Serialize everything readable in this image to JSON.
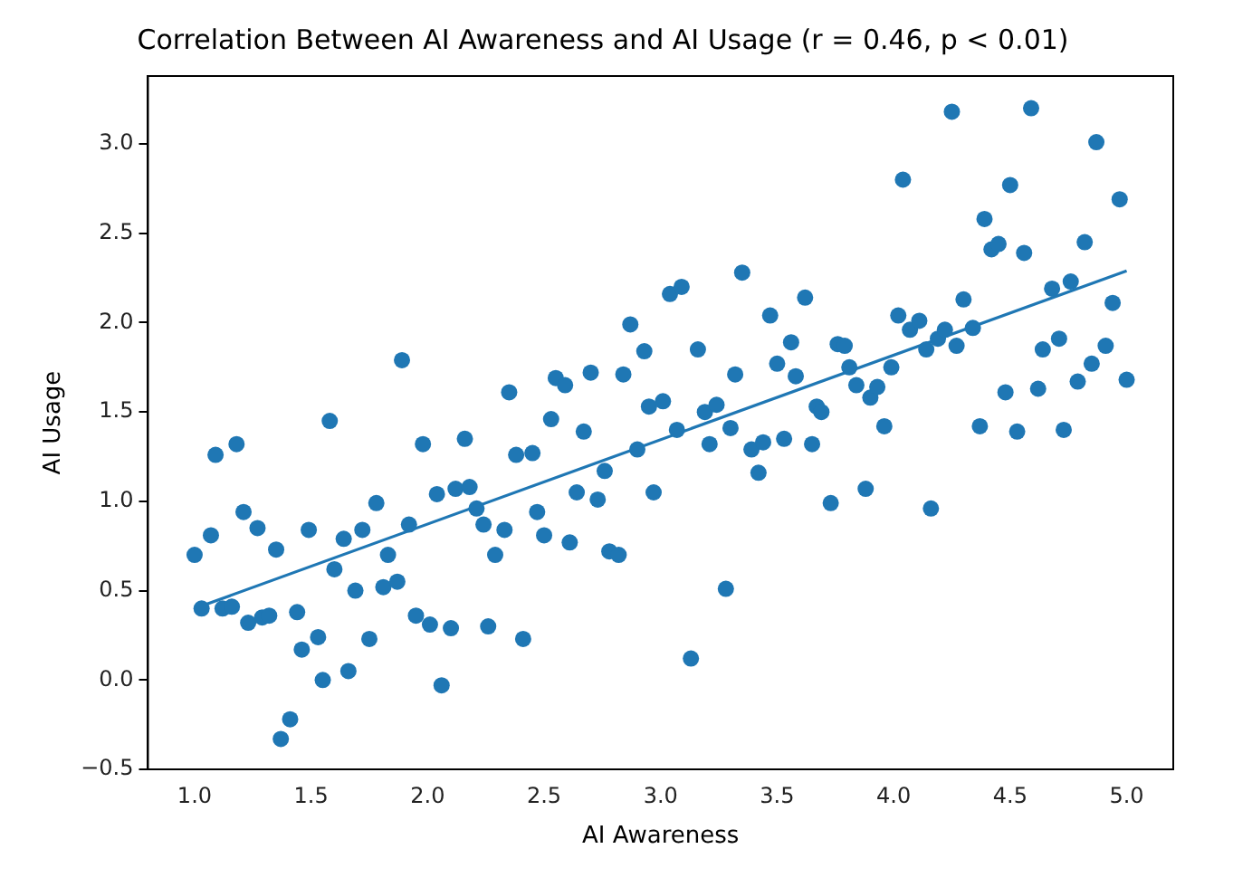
{
  "chart_data": {
    "type": "scatter",
    "title": "Correlation Between AI Awareness and AI Usage (r = 0.46, p < 0.01)",
    "xlabel": "AI Awareness",
    "ylabel": "AI Usage",
    "grid": false,
    "legend": false,
    "marker": "circle",
    "xlim": [
      0.8,
      5.2
    ],
    "ylim": [
      -0.5,
      3.38
    ],
    "xticks": [
      {
        "value": 1,
        "label": "1.0"
      },
      {
        "value": 1.5,
        "label": "1.5"
      },
      {
        "value": 2,
        "label": "2.0"
      },
      {
        "value": 2.5,
        "label": "2.5"
      },
      {
        "value": 3,
        "label": "3.0"
      },
      {
        "value": 3.5,
        "label": "3.5"
      },
      {
        "value": 4,
        "label": "4.0"
      },
      {
        "value": 4.5,
        "label": "4.5"
      },
      {
        "value": 5,
        "label": "5.0"
      }
    ],
    "yticks": [
      {
        "value": -0.5,
        "label": "−0.5"
      },
      {
        "value": 0,
        "label": "0.0"
      },
      {
        "value": 0.5,
        "label": "0.5"
      },
      {
        "value": 1,
        "label": "1.0"
      },
      {
        "value": 1.5,
        "label": "1.5"
      },
      {
        "value": 2,
        "label": "2.0"
      },
      {
        "value": 2.5,
        "label": "2.5"
      },
      {
        "value": 3,
        "label": "3.0"
      }
    ],
    "series": [
      {
        "color": "#1f77b4",
        "x": [
          1.0,
          1.07,
          1.09,
          1.18,
          1.03,
          1.12,
          1.16,
          1.21,
          1.27,
          1.23,
          1.29,
          1.32,
          1.35,
          1.44,
          1.41,
          1.37,
          1.46,
          1.53,
          1.55,
          1.49,
          1.58,
          1.6,
          1.64,
          1.72,
          1.69,
          1.66,
          1.75,
          1.78,
          1.83,
          1.81,
          1.87,
          1.92,
          1.95,
          2.01,
          2.1,
          2.06,
          1.98,
          2.04,
          2.12,
          2.18,
          2.16,
          2.21,
          2.24,
          2.29,
          2.33,
          2.26,
          2.41,
          2.38,
          2.45,
          2.47,
          2.5,
          2.53,
          2.61,
          2.64,
          2.67,
          2.73,
          2.76,
          2.78,
          2.82,
          2.9,
          2.97,
          2.95,
          1.89,
          2.35,
          2.55,
          2.59,
          2.7,
          2.84,
          2.87,
          2.93,
          3.04,
          3.09,
          3.16,
          3.01,
          3.07,
          3.19,
          3.24,
          3.3,
          3.32,
          3.35,
          3.47,
          3.56,
          3.5,
          3.58,
          3.62,
          3.76,
          3.79,
          3.81,
          3.67,
          3.69,
          3.84,
          3.9,
          3.93,
          3.99,
          3.96,
          4.02,
          4.04,
          4.07,
          4.11,
          4.14,
          4.19,
          4.22,
          4.25,
          4.27,
          4.3,
          4.34,
          4.39,
          4.42,
          4.45,
          4.48,
          4.5,
          4.56,
          4.59,
          4.62,
          4.64,
          4.68,
          4.71,
          4.76,
          4.79,
          4.82,
          4.85,
          4.87,
          4.91,
          4.94,
          4.97,
          5.0,
          4.37,
          4.53,
          4.73,
          3.21,
          3.39,
          3.44,
          3.53,
          3.42,
          3.65,
          3.73,
          3.88,
          4.16,
          3.28,
          3.13
        ],
        "values": [
          0.7,
          0.81,
          1.26,
          1.32,
          0.4,
          0.4,
          0.41,
          0.94,
          0.85,
          0.32,
          0.35,
          0.36,
          0.73,
          0.38,
          -0.22,
          -0.33,
          0.17,
          0.24,
          0.0,
          0.84,
          1.45,
          0.62,
          0.79,
          0.84,
          0.5,
          0.05,
          0.23,
          0.99,
          0.7,
          0.52,
          0.55,
          0.87,
          0.36,
          0.31,
          0.29,
          -0.03,
          1.32,
          1.04,
          1.07,
          1.08,
          1.35,
          0.96,
          0.87,
          0.7,
          0.84,
          0.3,
          0.23,
          1.26,
          1.27,
          0.94,
          0.81,
          1.46,
          0.77,
          1.05,
          1.39,
          1.01,
          1.17,
          0.72,
          0.7,
          1.29,
          1.05,
          1.53,
          1.79,
          1.61,
          1.69,
          1.65,
          1.72,
          1.71,
          1.99,
          1.84,
          2.16,
          2.2,
          1.85,
          1.56,
          1.4,
          1.5,
          1.54,
          1.41,
          1.71,
          2.28,
          2.04,
          1.89,
          1.77,
          1.7,
          2.14,
          1.88,
          1.87,
          1.75,
          1.53,
          1.5,
          1.65,
          1.58,
          1.64,
          1.75,
          1.42,
          2.04,
          2.8,
          1.96,
          2.01,
          1.85,
          1.91,
          1.96,
          3.18,
          1.87,
          2.13,
          1.97,
          2.58,
          2.41,
          2.44,
          1.61,
          2.77,
          2.39,
          3.2,
          1.63,
          1.85,
          2.19,
          1.91,
          2.23,
          1.67,
          2.45,
          1.77,
          3.01,
          1.87,
          2.11,
          2.69,
          1.68,
          1.42,
          1.39,
          1.4,
          1.32,
          1.29,
          1.33,
          1.35,
          1.16,
          1.32,
          0.99,
          1.07,
          0.96,
          0.51,
          0.12
        ]
      },
      {
        "type": "line",
        "color": "#1f77b4",
        "marker": "none",
        "x": [
          1.0,
          5.0
        ],
        "values": [
          0.4,
          2.29
        ]
      }
    ]
  }
}
